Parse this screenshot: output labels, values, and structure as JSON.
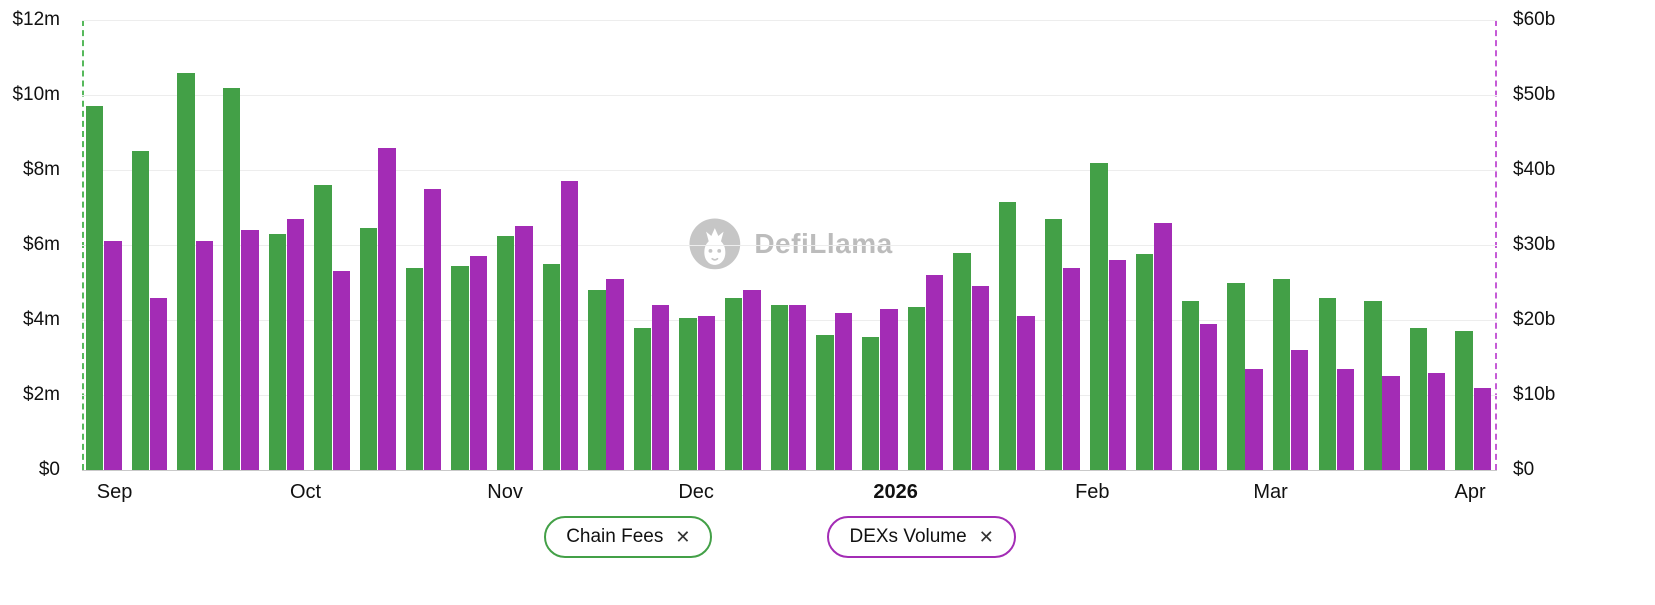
{
  "watermark": {
    "text": "DefiLlama"
  },
  "legend": {
    "items": [
      {
        "label": "Chain Fees"
      },
      {
        "label": "DEXs Volume"
      }
    ],
    "close_symbol": "✕"
  },
  "colors": {
    "chain_fees": "#43a047",
    "dexs_volume": "#a32cb5",
    "left_axis_dash": "#57b95c",
    "right_axis_dash": "#c55bd6"
  },
  "chart_data": {
    "type": "bar",
    "title": "",
    "xlabel": "",
    "ylabel_left": "Chain Fees ($m)",
    "ylabel_right": "DEXs Volume ($b)",
    "grid": true,
    "legend_position": "bottom",
    "series": [
      {
        "name": "Chain Fees",
        "axis": "left",
        "unit": "$m",
        "color": "#43a047",
        "values": [
          9.7,
          8.5,
          10.6,
          10.2,
          6.3,
          7.6,
          6.45,
          5.4,
          5.45,
          6.25,
          5.5,
          4.8,
          3.8,
          4.05,
          4.6,
          4.4,
          3.6,
          3.55,
          4.35,
          5.8,
          7.15,
          6.7,
          8.2,
          5.75,
          4.5,
          5.0,
          5.1,
          4.6,
          4.5,
          3.8,
          3.7
        ]
      },
      {
        "name": "DEXs Volume",
        "axis": "right",
        "unit": "$b",
        "color": "#a32cb5",
        "values": [
          30.5,
          23,
          30.5,
          32,
          33.5,
          26.5,
          43,
          37.5,
          28.5,
          32.5,
          38.5,
          25.5,
          22,
          20.5,
          24,
          22,
          21,
          21.5,
          26,
          24.5,
          20.5,
          27,
          28,
          33,
          19.5,
          13.5,
          16,
          13.5,
          12.5,
          13,
          11
        ]
      }
    ],
    "left_axis": {
      "max": 12,
      "ticks": [
        "$0",
        "$2m",
        "$4m",
        "$6m",
        "$8m",
        "$10m",
        "$12m"
      ]
    },
    "right_axis": {
      "max": 60,
      "ticks": [
        "$0",
        "$10b",
        "$20b",
        "$30b",
        "$40b",
        "$50b",
        "$60b"
      ]
    },
    "x_ticks": [
      {
        "label": "Sep",
        "pos": 0.023,
        "bold": false
      },
      {
        "label": "Oct",
        "pos": 0.158,
        "bold": false
      },
      {
        "label": "Nov",
        "pos": 0.299,
        "bold": false
      },
      {
        "label": "Dec",
        "pos": 0.434,
        "bold": false
      },
      {
        "label": "2026",
        "pos": 0.575,
        "bold": true
      },
      {
        "label": "Feb",
        "pos": 0.714,
        "bold": false
      },
      {
        "label": "Mar",
        "pos": 0.84,
        "bold": false
      },
      {
        "label": "Apr",
        "pos": 0.981,
        "bold": false
      }
    ]
  }
}
